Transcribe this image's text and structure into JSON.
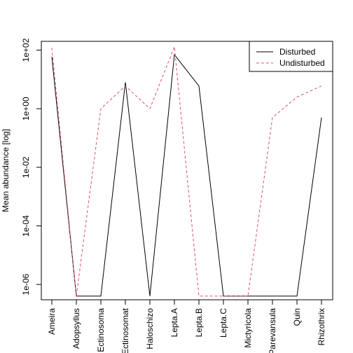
{
  "chart_data": {
    "type": "line",
    "title": "",
    "xlabel": "",
    "ylabel": "Mean abundance [log]",
    "y_scale": "log10",
    "ylim": [
      3e-07,
      200
    ],
    "y_ticks": [
      {
        "value": 1e-06,
        "label": "1e-06"
      },
      {
        "value": 0.0001,
        "label": "1e-04"
      },
      {
        "value": 0.01,
        "label": "1e-02"
      },
      {
        "value": 1,
        "label": "1e+00"
      },
      {
        "value": 100,
        "label": "1e+02"
      }
    ],
    "categories": [
      "Ameira",
      "Adopsyllus",
      "Ectinosoma",
      "Ectinosomat",
      "Haloschizo",
      "Lepta.A",
      "Lepta.B",
      "Lepta.C",
      "Mictyricola",
      "Parevansula",
      "Quin",
      "Rhizothrix"
    ],
    "grid": false,
    "legend_position": "top-right",
    "series": [
      {
        "name": "Disturbed",
        "color": "#000000",
        "dash": "solid",
        "values": [
          60,
          4e-07,
          4e-07,
          8,
          4e-07,
          70,
          6,
          4e-07,
          4e-07,
          4e-07,
          4e-07,
          0.5
        ]
      },
      {
        "name": "Undisturbed",
        "color": "#DF536B",
        "dash": "dashed",
        "values": [
          120,
          4e-07,
          1,
          6,
          1,
          130,
          4e-07,
          4e-07,
          4e-07,
          0.5,
          2.5,
          6
        ]
      }
    ]
  }
}
